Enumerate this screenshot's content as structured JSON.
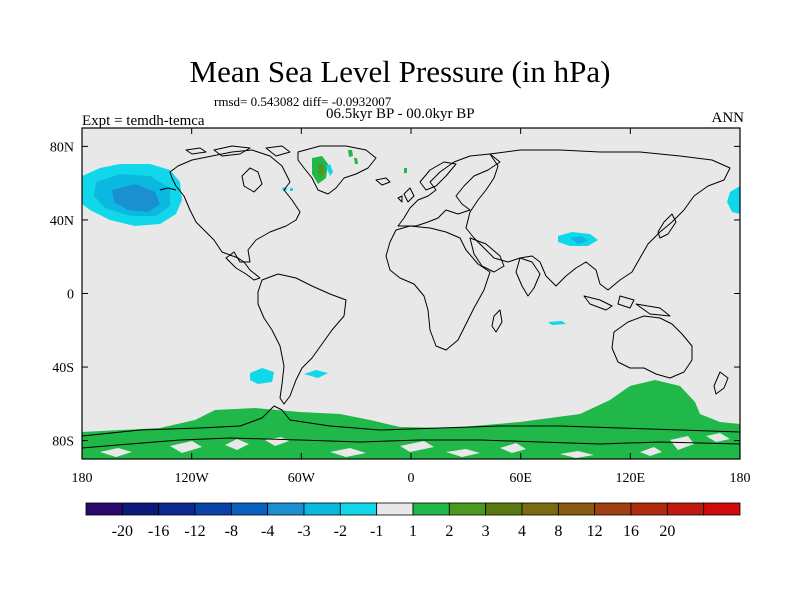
{
  "title": "Mean Sea Level Pressure (in hPa)",
  "stats": "rmsd= 0.543082 diff= -0.0932007",
  "period": "06.5kyr BP - 00.0kyr BP",
  "experiment": "Expt = temdh-temca",
  "season": "ANN",
  "map": {
    "projection": "cylindrical-equidistant",
    "lon_range": [
      -180,
      180
    ],
    "lat_range": [
      -90,
      90
    ],
    "lon_ticks": [
      {
        "value": -180,
        "label": "180"
      },
      {
        "value": -120,
        "label": "120W"
      },
      {
        "value": -60,
        "label": "60W"
      },
      {
        "value": 0,
        "label": "0"
      },
      {
        "value": 60,
        "label": "60E"
      },
      {
        "value": 120,
        "label": "120E"
      },
      {
        "value": 180,
        "label": "180"
      }
    ],
    "lat_ticks": [
      {
        "value": 80,
        "label": "80N"
      },
      {
        "value": 40,
        "label": "40N"
      },
      {
        "value": 0,
        "label": "0"
      },
      {
        "value": -40,
        "label": "40S"
      },
      {
        "value": -80,
        "label": "80S"
      }
    ],
    "background_color": "#e8e8e8"
  },
  "colorbar": {
    "colors": [
      "#2a0a6a",
      "#0a1a7a",
      "#0a2890",
      "#0a42a8",
      "#0a62c0",
      "#1a90d0",
      "#0ab8e0",
      "#10d8ea",
      "#e8e8e8",
      "#20b848",
      "#4a9a20",
      "#5a7a10",
      "#7a6a10",
      "#8a5a10",
      "#a04010",
      "#b02a10",
      "#c01a10",
      "#d00a0a"
    ],
    "labels": [
      "-20",
      "-16",
      "-12",
      "-8",
      "-4",
      "-3",
      "-2",
      "-1",
      "1",
      "2",
      "3",
      "4",
      "8",
      "12",
      "16",
      "20"
    ]
  }
}
